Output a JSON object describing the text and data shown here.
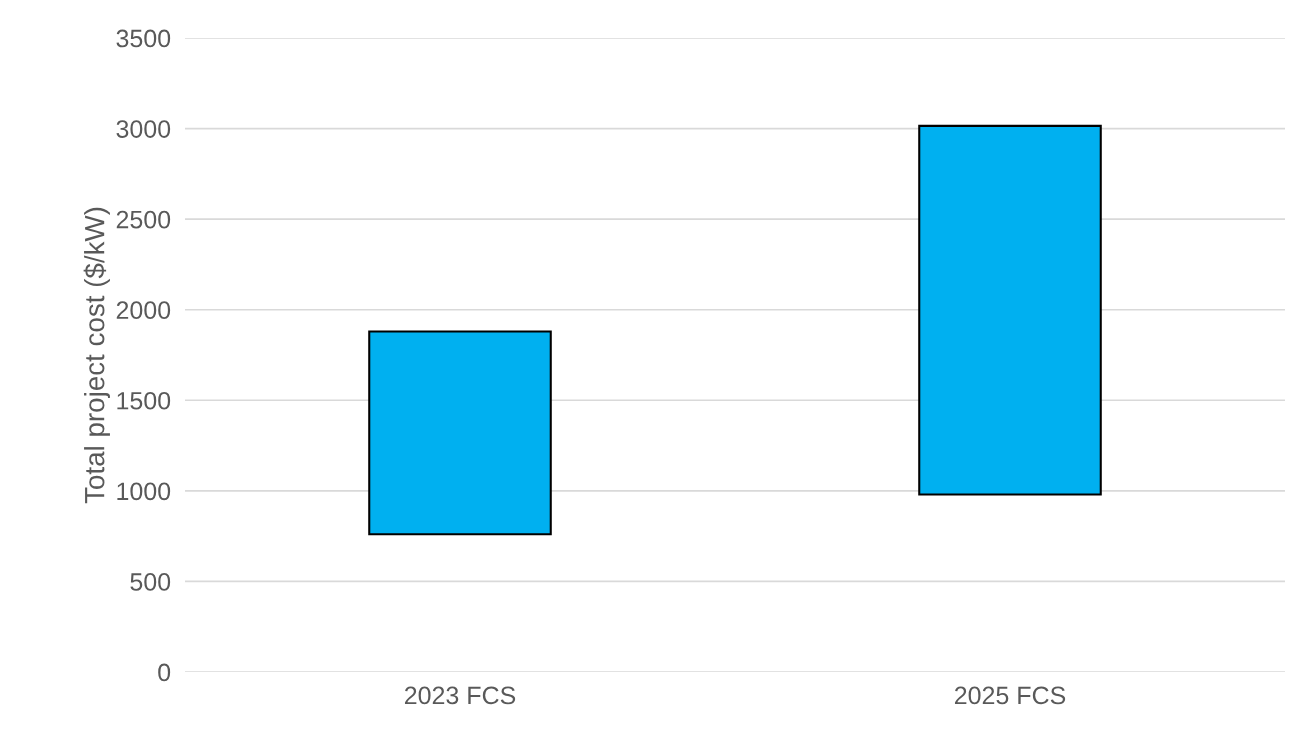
{
  "chart_data": {
    "type": "bar",
    "ylabel": "Total project cost ($/kW)",
    "categories": [
      "2023 FCS",
      "2025 FCS"
    ],
    "base": [
      760,
      980
    ],
    "values": [
      1120,
      2035
    ],
    "color": "#00b0f0",
    "ylim": [
      0,
      3500
    ],
    "yticks": [
      0,
      500,
      1000,
      1500,
      2000,
      2500,
      3000,
      3500
    ],
    "grid": "y"
  }
}
